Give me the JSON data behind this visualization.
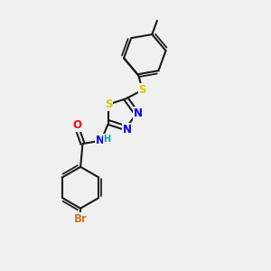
{
  "bg_color": "#f0f0f0",
  "bond_color": "#1a1a1a",
  "atom_colors": {
    "S": "#cccc00",
    "N": "#0000ff",
    "O": "#ff0000",
    "Br": "#cc7722",
    "C": "#1a1a1a",
    "H": "#00aaaa"
  },
  "bond_width": 1.5,
  "font_size_atoms": 8.5,
  "font_size_small": 7.0,
  "xlim": [
    0,
    10
  ],
  "ylim": [
    0,
    10
  ]
}
